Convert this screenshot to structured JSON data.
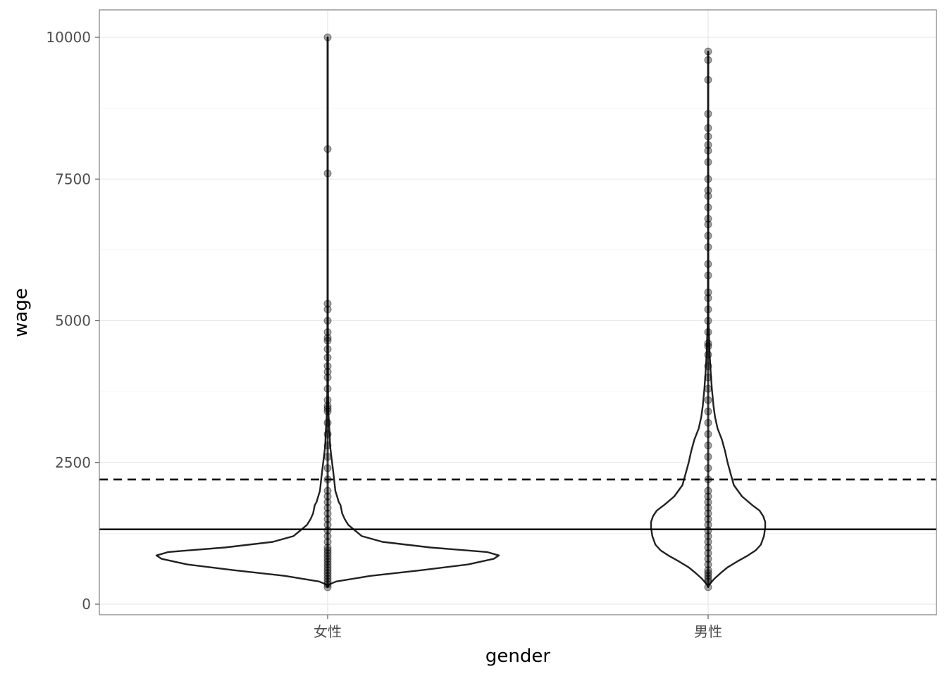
{
  "chart_data": {
    "type": "violin",
    "xlabel": "gender",
    "ylabel": "wage",
    "categories": [
      "女性",
      "男性"
    ],
    "y_ticks": [
      0,
      2500,
      5000,
      7500,
      10000
    ],
    "y_tick_labels": [
      "0",
      "2500",
      "5000",
      "7500",
      "10000"
    ],
    "ylim": [
      -180,
      10480
    ],
    "grid": true,
    "hlines": [
      {
        "value": 1320,
        "style": "solid",
        "color": "#000000"
      },
      {
        "value": 2200,
        "style": "dashed",
        "color": "#000000"
      }
    ],
    "violins": [
      {
        "category": "女性",
        "profile": [
          [
            300,
            0.0
          ],
          [
            350,
            0.01
          ],
          [
            400,
            0.05
          ],
          [
            500,
            0.25
          ],
          [
            600,
            0.55
          ],
          [
            700,
            0.82
          ],
          [
            800,
            0.97
          ],
          [
            860,
            1.0
          ],
          [
            920,
            0.93
          ],
          [
            1000,
            0.6
          ],
          [
            1100,
            0.32
          ],
          [
            1200,
            0.2
          ],
          [
            1300,
            0.16
          ],
          [
            1400,
            0.12
          ],
          [
            1500,
            0.1
          ],
          [
            1600,
            0.085
          ],
          [
            1750,
            0.075
          ],
          [
            1800,
            0.065
          ],
          [
            1900,
            0.055
          ],
          [
            2000,
            0.045
          ],
          [
            2200,
            0.038
          ],
          [
            2400,
            0.03
          ],
          [
            2600,
            0.022
          ],
          [
            2800,
            0.014
          ],
          [
            3000,
            0.012
          ],
          [
            3200,
            0.008
          ],
          [
            3400,
            0.004
          ],
          [
            3800,
            0.002
          ],
          [
            4500,
            0.002
          ],
          [
            5500,
            0.001
          ],
          [
            7000,
            0.001
          ],
          [
            8500,
            0.001
          ],
          [
            10000,
            0.0
          ]
        ],
        "points": [
          300,
          350,
          400,
          450,
          500,
          550,
          600,
          650,
          700,
          750,
          800,
          850,
          900,
          950,
          1000,
          1100,
          1200,
          1300,
          1400,
          1500,
          1600,
          1700,
          1800,
          1900,
          2000,
          2200,
          2400,
          2600,
          2800,
          3000,
          3200,
          3400,
          3450,
          3500,
          3600,
          3800,
          4000,
          4100,
          4200,
          4350,
          4500,
          4650,
          4700,
          4800,
          5000,
          5200,
          5300,
          7600,
          8030,
          10000
        ]
      },
      {
        "category": "男性",
        "profile": [
          [
            300,
            0.0
          ],
          [
            350,
            0.02
          ],
          [
            450,
            0.1
          ],
          [
            550,
            0.2
          ],
          [
            650,
            0.31
          ],
          [
            750,
            0.46
          ],
          [
            850,
            0.62
          ],
          [
            950,
            0.76
          ],
          [
            1050,
            0.84
          ],
          [
            1200,
            0.89
          ],
          [
            1350,
            0.91
          ],
          [
            1450,
            0.91
          ],
          [
            1550,
            0.88
          ],
          [
            1650,
            0.82
          ],
          [
            1750,
            0.7
          ],
          [
            1900,
            0.54
          ],
          [
            2100,
            0.41
          ],
          [
            2300,
            0.36
          ],
          [
            2500,
            0.31
          ],
          [
            2700,
            0.27
          ],
          [
            2900,
            0.22
          ],
          [
            3100,
            0.15
          ],
          [
            3300,
            0.11
          ],
          [
            3500,
            0.085
          ],
          [
            3800,
            0.06
          ],
          [
            4100,
            0.04
          ],
          [
            4400,
            0.025
          ],
          [
            4700,
            0.016
          ],
          [
            5000,
            0.006
          ],
          [
            5500,
            0.004
          ],
          [
            6500,
            0.003
          ],
          [
            8000,
            0.002
          ],
          [
            9500,
            0.001
          ],
          [
            9750,
            0.0
          ]
        ],
        "points": [
          300,
          400,
          450,
          500,
          550,
          600,
          700,
          800,
          900,
          1000,
          1100,
          1200,
          1300,
          1400,
          1500,
          1600,
          1700,
          1800,
          1900,
          2000,
          2200,
          2400,
          2600,
          2800,
          3000,
          3200,
          3400,
          3600,
          3800,
          4000,
          4200,
          4400,
          4550,
          4600,
          4800,
          5000,
          5200,
          5400,
          5500,
          5800,
          6000,
          6300,
          6500,
          6700,
          6800,
          7000,
          7200,
          7300,
          7500,
          7800,
          8000,
          8100,
          8250,
          8400,
          8650,
          9250,
          9600,
          9750
        ]
      }
    ]
  }
}
